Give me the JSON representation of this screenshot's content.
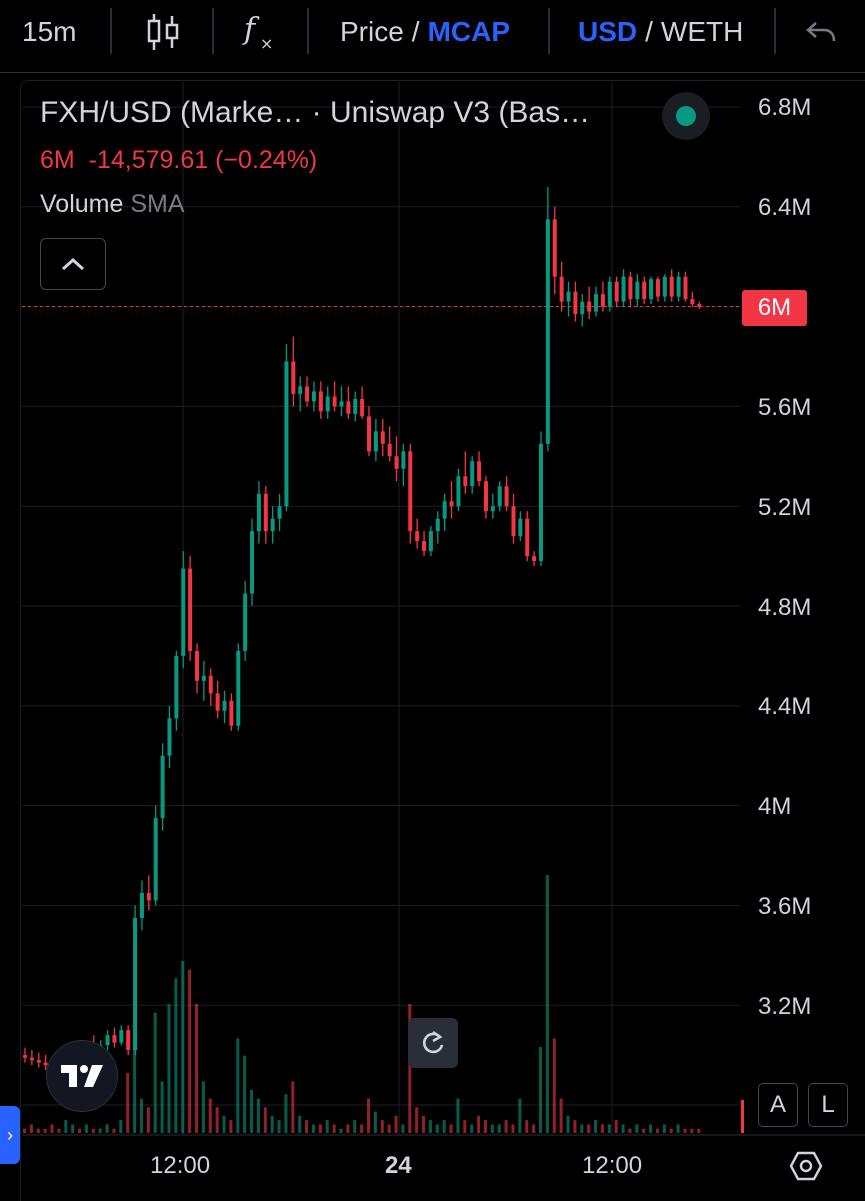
{
  "toolbar": {
    "interval": "15m",
    "price_label": "Price",
    "slash": "/",
    "mcap_label": "MCAP",
    "usd_label": "USD",
    "weth_label": "WETH"
  },
  "legend": {
    "title": "FXH/USD (Marke… · Uniswap V3 (Bas…",
    "ohlc_line": "6M  -14,579.61 (−0.24%)",
    "volume_label": "Volume",
    "sma_label": "SMA"
  },
  "price_tag": "6M",
  "buttons": {
    "auto": "A",
    "log": "L",
    "side_tab": "›"
  },
  "colors": {
    "up": "#089981",
    "down": "#f23645",
    "accent": "#2962ff",
    "grid": "#1c1f26",
    "background": "#000000"
  },
  "icons": [
    "candles-icon",
    "fx-icon",
    "undo-icon",
    "collapse-chevron-icon",
    "status-dot-icon",
    "tradingview-logo-icon",
    "reset-icon",
    "settings-icon"
  ],
  "chart_data": {
    "type": "candlestick",
    "y_ticks": [
      "6.8M",
      "6.4M",
      "5.6M",
      "5.2M",
      "4.8M",
      "4.4M",
      "4M",
      "3.6M",
      "3.2M"
    ],
    "x_ticks": [
      "12:00",
      "24",
      "12:00"
    ],
    "ylim": [
      2.8,
      6.8
    ],
    "ohlc": [
      [
        3.0,
        3.03,
        2.97,
        2.99
      ],
      [
        2.99,
        3.02,
        2.96,
        2.98
      ],
      [
        2.98,
        3.01,
        2.95,
        2.97
      ],
      [
        2.97,
        3.0,
        2.94,
        2.96
      ],
      [
        2.96,
        2.99,
        2.93,
        2.95
      ],
      [
        2.95,
        2.98,
        2.92,
        2.94
      ],
      [
        2.94,
        2.98,
        2.92,
        2.96
      ],
      [
        2.96,
        3.02,
        2.94,
        3.0
      ],
      [
        3.0,
        3.04,
        2.97,
        2.98
      ],
      [
        2.98,
        3.05,
        2.97,
        3.03
      ],
      [
        3.03,
        3.08,
        3.0,
        3.02
      ],
      [
        3.02,
        3.06,
        2.99,
        3.04
      ],
      [
        3.04,
        3.1,
        3.02,
        3.08
      ],
      [
        3.08,
        3.11,
        3.03,
        3.05
      ],
      [
        3.05,
        3.12,
        3.04,
        3.1
      ],
      [
        3.1,
        3.12,
        3.0,
        3.02
      ],
      [
        3.02,
        3.6,
        3.0,
        3.55
      ],
      [
        3.55,
        3.7,
        3.5,
        3.65
      ],
      [
        3.65,
        3.72,
        3.58,
        3.62
      ],
      [
        3.62,
        4.0,
        3.6,
        3.95
      ],
      [
        3.95,
        4.25,
        3.9,
        4.2
      ],
      [
        4.2,
        4.4,
        4.15,
        4.35
      ],
      [
        4.35,
        4.62,
        4.3,
        4.6
      ],
      [
        4.6,
        5.02,
        4.55,
        4.95
      ],
      [
        4.95,
        5.0,
        4.58,
        4.62
      ],
      [
        4.62,
        4.65,
        4.45,
        4.5
      ],
      [
        4.5,
        4.58,
        4.42,
        4.52
      ],
      [
        4.52,
        4.55,
        4.4,
        4.45
      ],
      [
        4.45,
        4.5,
        4.35,
        4.38
      ],
      [
        4.38,
        4.46,
        4.33,
        4.42
      ],
      [
        4.42,
        4.45,
        4.3,
        4.32
      ],
      [
        4.32,
        4.65,
        4.3,
        4.62
      ],
      [
        4.62,
        4.9,
        4.58,
        4.85
      ],
      [
        4.85,
        5.15,
        4.8,
        5.1
      ],
      [
        5.1,
        5.3,
        5.05,
        5.25
      ],
      [
        5.25,
        5.28,
        5.05,
        5.1
      ],
      [
        5.1,
        5.2,
        5.05,
        5.15
      ],
      [
        5.15,
        5.25,
        5.1,
        5.2
      ],
      [
        5.2,
        5.85,
        5.18,
        5.78
      ],
      [
        5.78,
        5.88,
        5.6,
        5.65
      ],
      [
        5.65,
        5.72,
        5.58,
        5.68
      ],
      [
        5.68,
        5.72,
        5.6,
        5.62
      ],
      [
        5.62,
        5.7,
        5.58,
        5.66
      ],
      [
        5.66,
        5.7,
        5.55,
        5.58
      ],
      [
        5.58,
        5.68,
        5.55,
        5.64
      ],
      [
        5.64,
        5.7,
        5.58,
        5.6
      ],
      [
        5.6,
        5.68,
        5.56,
        5.62
      ],
      [
        5.62,
        5.68,
        5.55,
        5.57
      ],
      [
        5.57,
        5.66,
        5.54,
        5.63
      ],
      [
        5.63,
        5.68,
        5.55,
        5.56
      ],
      [
        5.56,
        5.6,
        5.4,
        5.42
      ],
      [
        5.42,
        5.55,
        5.38,
        5.5
      ],
      [
        5.5,
        5.55,
        5.4,
        5.45
      ],
      [
        5.45,
        5.52,
        5.38,
        5.4
      ],
      [
        5.4,
        5.48,
        5.3,
        5.35
      ],
      [
        5.35,
        5.45,
        5.28,
        5.42
      ],
      [
        5.42,
        5.45,
        5.05,
        5.1
      ],
      [
        5.1,
        5.15,
        5.03,
        5.06
      ],
      [
        5.06,
        5.1,
        5.0,
        5.02
      ],
      [
        5.02,
        5.12,
        5.0,
        5.1
      ],
      [
        5.1,
        5.18,
        5.05,
        5.15
      ],
      [
        5.15,
        5.25,
        5.1,
        5.22
      ],
      [
        5.22,
        5.3,
        5.15,
        5.2
      ],
      [
        5.2,
        5.35,
        5.18,
        5.32
      ],
      [
        5.32,
        5.42,
        5.25,
        5.28
      ],
      [
        5.28,
        5.4,
        5.25,
        5.38
      ],
      [
        5.38,
        5.42,
        5.28,
        5.3
      ],
      [
        5.3,
        5.32,
        5.15,
        5.18
      ],
      [
        5.18,
        5.25,
        5.15,
        5.2
      ],
      [
        5.2,
        5.3,
        5.18,
        5.28
      ],
      [
        5.28,
        5.32,
        5.18,
        5.2
      ],
      [
        5.2,
        5.25,
        5.05,
        5.08
      ],
      [
        5.08,
        5.18,
        5.06,
        5.15
      ],
      [
        5.15,
        5.18,
        4.98,
        5.0
      ],
      [
        5.0,
        5.02,
        4.96,
        4.98
      ],
      [
        4.98,
        5.5,
        4.96,
        5.45
      ],
      [
        5.45,
        6.48,
        5.42,
        6.35
      ],
      [
        6.35,
        6.4,
        6.05,
        6.12
      ],
      [
        6.12,
        6.18,
        5.98,
        6.02
      ],
      [
        6.02,
        6.1,
        5.96,
        6.06
      ],
      [
        6.06,
        6.1,
        5.94,
        5.97
      ],
      [
        5.97,
        6.05,
        5.92,
        6.02
      ],
      [
        6.02,
        6.08,
        5.95,
        5.98
      ],
      [
        5.98,
        6.08,
        5.96,
        6.05
      ],
      [
        6.05,
        6.1,
        5.98,
        6.0
      ],
      [
        6.0,
        6.12,
        5.98,
        6.1
      ],
      [
        6.1,
        6.12,
        6.0,
        6.02
      ],
      [
        6.02,
        6.15,
        6.0,
        6.12
      ],
      [
        6.12,
        6.14,
        6.0,
        6.03
      ],
      [
        6.03,
        6.13,
        6.0,
        6.1
      ],
      [
        6.1,
        6.12,
        6.01,
        6.03
      ],
      [
        6.03,
        6.12,
        6.01,
        6.11
      ],
      [
        6.11,
        6.12,
        6.02,
        6.04
      ],
      [
        6.04,
        6.13,
        6.02,
        6.12
      ],
      [
        6.12,
        6.15,
        6.02,
        6.04
      ],
      [
        6.04,
        6.14,
        6.02,
        6.12
      ],
      [
        6.12,
        6.14,
        6.02,
        6.03
      ],
      [
        6.03,
        6.06,
        6.0,
        6.01
      ],
      [
        6.01,
        6.02,
        5.99,
        6.0
      ]
    ],
    "volume": [
      1,
      2,
      1,
      1,
      2,
      1,
      3,
      2,
      1,
      2,
      1,
      1,
      2,
      1,
      3,
      14,
      20,
      8,
      6,
      28,
      12,
      30,
      36,
      40,
      38,
      30,
      12,
      8,
      6,
      4,
      3,
      22,
      18,
      10,
      8,
      6,
      4,
      3,
      9,
      12,
      4,
      3,
      2,
      2,
      3,
      2,
      1,
      2,
      3,
      2,
      8,
      5,
      3,
      2,
      4,
      2,
      30,
      6,
      4,
      3,
      2,
      3,
      2,
      8,
      3,
      2,
      4,
      3,
      2,
      2,
      3,
      2,
      8,
      3,
      2,
      20,
      60,
      22,
      8,
      4,
      3,
      2,
      2,
      3,
      2,
      2,
      3,
      2,
      1,
      2,
      1,
      2,
      1,
      2,
      1,
      2,
      1,
      1,
      1
    ]
  }
}
